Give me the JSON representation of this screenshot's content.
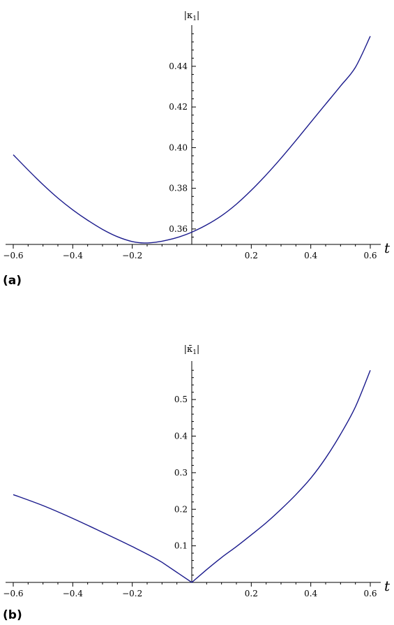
{
  "chart_data": [
    {
      "type": "line",
      "panel_label": "(a)",
      "xlabel": "t",
      "ylabel": {
        "prefix": "|κ",
        "sub": "1",
        "suffix": "|"
      },
      "xlim": [
        -0.6,
        0.6
      ],
      "ylim": [
        0.3524,
        0.4575
      ],
      "xticks": [
        -0.6,
        -0.4,
        -0.2,
        0.2,
        0.4,
        0.6
      ],
      "xtick_labels": [
        "−0.6",
        "−0.4",
        "−0.2",
        "0.2",
        "0.4",
        "0.6"
      ],
      "yticks": [
        0.36,
        0.38,
        0.4,
        0.42,
        0.44
      ],
      "ytick_labels": [
        "0.36",
        "0.38",
        "0.40",
        "0.42",
        "0.44"
      ],
      "line_color": "#1a1a8c",
      "series": [
        {
          "x": [
            -0.6,
            -0.55,
            -0.5,
            -0.45,
            -0.4,
            -0.35,
            -0.3,
            -0.25,
            -0.2,
            -0.16,
            -0.12,
            -0.08,
            -0.04,
            0.0,
            0.05,
            0.1,
            0.15,
            0.2,
            0.25,
            0.3,
            0.35,
            0.4,
            0.45,
            0.5,
            0.55,
            0.6
          ],
          "y": [
            0.3965,
            0.389,
            0.3818,
            0.3752,
            0.3694,
            0.3643,
            0.3598,
            0.3562,
            0.3538,
            0.3531,
            0.3535,
            0.3546,
            0.3562,
            0.3584,
            0.362,
            0.3665,
            0.3722,
            0.379,
            0.3866,
            0.3948,
            0.4035,
            0.4125,
            0.4214,
            0.4303,
            0.4395,
            0.4548
          ]
        }
      ]
    },
    {
      "type": "line",
      "panel_label": "(b)",
      "xlabel": "t",
      "ylabel": {
        "prefix": "|κ̄",
        "sub": "1",
        "suffix": "|"
      },
      "xlim": [
        -0.6,
        0.6
      ],
      "ylim": [
        0,
        0.59
      ],
      "xticks": [
        -0.6,
        -0.4,
        -0.2,
        0.2,
        0.4,
        0.6
      ],
      "xtick_labels": [
        "−0.6",
        "−0.4",
        "−0.2",
        "0.2",
        "0.4",
        "0.6"
      ],
      "yticks": [
        0.1,
        0.2,
        0.3,
        0.4,
        0.5
      ],
      "ytick_labels": [
        "0.1",
        "0.2",
        "0.3",
        "0.4",
        "0.5"
      ],
      "line_color": "#1a1a8c",
      "series": [
        {
          "x": [
            -0.6,
            -0.5,
            -0.4,
            -0.3,
            -0.2,
            -0.1,
            0.0,
            0.05,
            0.1,
            0.15,
            0.2,
            0.25,
            0.3,
            0.35,
            0.4,
            0.45,
            0.5,
            0.55,
            0.6
          ],
          "y": [
            0.24,
            0.21,
            0.175,
            0.137,
            0.098,
            0.055,
            0.0,
            0.035,
            0.068,
            0.098,
            0.13,
            0.163,
            0.2,
            0.24,
            0.285,
            0.34,
            0.405,
            0.48,
            0.58
          ]
        }
      ]
    }
  ]
}
